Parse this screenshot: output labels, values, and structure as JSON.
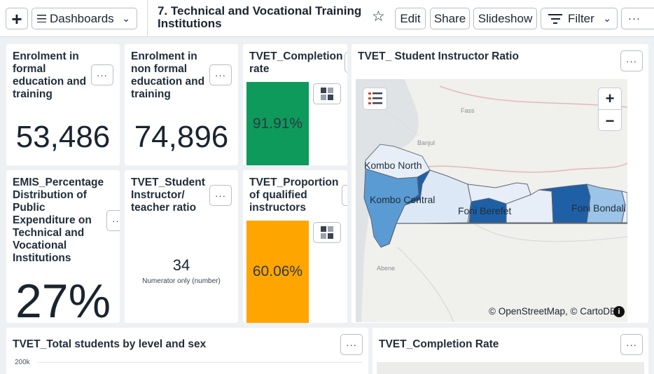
{
  "toolbar": {
    "add_label": "+",
    "dashboards_label": "Dashboards",
    "title": "7. Technical and Vocational Training Institutions",
    "star": "☆",
    "edit_label": "Edit",
    "share_label": "Share",
    "slideshow_label": "Slideshow",
    "filter_label": "Filter",
    "more_label": "···"
  },
  "tiles": {
    "enrol_formal": {
      "title": "Enrolment in formal education and training",
      "value": "53,486"
    },
    "enrol_nonformal": {
      "title": "Enrolment in non formal education and training",
      "value": "74,896"
    },
    "completion": {
      "title": "TVET_Completion rate",
      "value": "91.91%",
      "color": "#0e9a5a"
    },
    "emis": {
      "title": "EMIS_Percentage Distribution of Public Expenditure on Technical and Vocational Institutions",
      "value": "27%"
    },
    "ratio": {
      "title": "TVET_Student Instructor/ teacher ratio",
      "value": "34",
      "subtitle": "Numerator only (number)"
    },
    "qualified": {
      "title": "TVET_Proportion of qualified instructors",
      "value": "60.06%",
      "color": "#ffa500"
    },
    "map": {
      "title": "TVET_ Student Instructor Ratio",
      "labels": {
        "fass": "Fass",
        "banjul": "Banjul",
        "kombo_north": "Kombo North",
        "kombo_central": "Kombo Central",
        "foni_berefet": "Foni Berefet",
        "foni_bondali": "Foni Bondali",
        "abene": "Abene"
      },
      "attribution": "© OpenStreetMap, © CartoDB",
      "zoom_in": "+",
      "zoom_out": "−",
      "info": "i"
    },
    "students_by_level": {
      "title": "TVET_Total students by level and sex",
      "axis_tick": "200k"
    },
    "completion_rate_map": {
      "title": "TVET_Completion Rate"
    }
  },
  "menu_dots": "···",
  "colors": {
    "accent_green": "#0e9a5a",
    "accent_orange": "#ffa500",
    "map_dark": "#1f5fa6",
    "map_mid": "#5a9bd4",
    "map_light": "#9cc4e8",
    "map_pale": "#e8eef8"
  }
}
